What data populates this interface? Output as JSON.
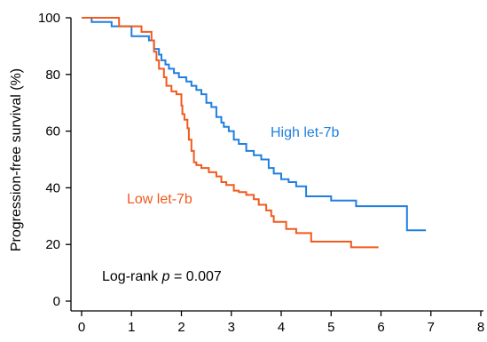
{
  "chart_data": {
    "type": "line",
    "step": true,
    "title": "",
    "xlabel": "",
    "ylabel": "Progression-free survival (%)",
    "xlim": [
      0,
      8
    ],
    "ylim": [
      0,
      100
    ],
    "xticks": [
      0,
      1,
      2,
      3,
      4,
      5,
      6,
      7,
      8
    ],
    "yticks": [
      0,
      20,
      40,
      60,
      80,
      100
    ],
    "grid": false,
    "legend": "inline",
    "annotation": {
      "prefix": "Log-rank ",
      "italic": "p",
      "suffix": " = 0.007"
    },
    "series": [
      {
        "name": "High let-7b",
        "color": "#1f7fe0",
        "x": [
          0.0,
          0.2,
          0.6,
          1.0,
          1.35,
          1.45,
          1.55,
          1.6,
          1.68,
          1.75,
          1.85,
          1.95,
          2.1,
          2.2,
          2.3,
          2.4,
          2.5,
          2.6,
          2.7,
          2.8,
          2.85,
          2.95,
          3.05,
          3.15,
          3.3,
          3.45,
          3.6,
          3.75,
          3.85,
          4.0,
          4.15,
          4.3,
          4.5,
          4.8,
          5.0,
          5.5,
          6.5,
          6.52,
          6.9
        ],
        "y": [
          100,
          98.5,
          97,
          93.5,
          92,
          89,
          87,
          85,
          83.5,
          82,
          80.5,
          79,
          77.5,
          76,
          74.5,
          73,
          70,
          68.5,
          65,
          63,
          61.5,
          60,
          57,
          55.5,
          53,
          51.5,
          50,
          47,
          45,
          43,
          42,
          40.5,
          37,
          37,
          35.5,
          33.5,
          33.5,
          25,
          25
        ]
      },
      {
        "name": "Low let-7b",
        "color": "#f05a1e",
        "x": [
          0.0,
          0.7,
          0.75,
          1.2,
          1.4,
          1.45,
          1.5,
          1.55,
          1.65,
          1.7,
          1.8,
          1.9,
          2.0,
          2.02,
          2.06,
          2.12,
          2.15,
          2.2,
          2.25,
          2.3,
          2.4,
          2.55,
          2.7,
          2.8,
          2.9,
          3.05,
          3.15,
          3.3,
          3.45,
          3.55,
          3.7,
          3.8,
          3.85,
          4.1,
          4.3,
          4.6,
          5.0,
          5.4,
          5.6,
          5.95
        ],
        "y": [
          100,
          100,
          97,
          95,
          92,
          88,
          85,
          82,
          79,
          76,
          74,
          73,
          69,
          66,
          64,
          61,
          57,
          53,
          49,
          48,
          47,
          45.5,
          44,
          42,
          41,
          39,
          38.5,
          37.5,
          36,
          34,
          32,
          30,
          28,
          25.5,
          24,
          21,
          21,
          19,
          19,
          19
        ]
      }
    ]
  }
}
